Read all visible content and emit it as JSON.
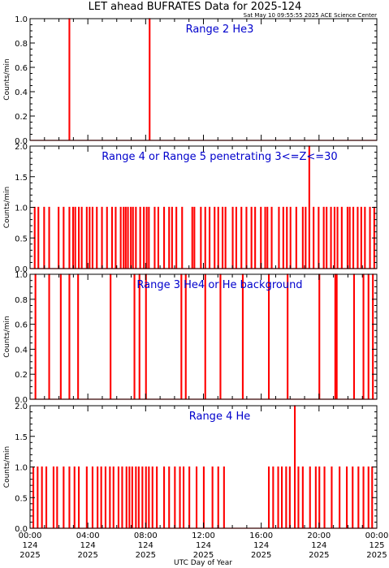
{
  "title": "LET ahead BUFRATES Data for 2025-124",
  "timestamp": "Sat May 10 09:55:55 2025 ACE Science Center",
  "xlabel": "UTC Day of Year",
  "colors": {
    "data": "#ff0000",
    "panel_title": "#0000cc",
    "axes": "#000000"
  },
  "chart_data": [
    {
      "type": "line",
      "title": "Range 2 He3",
      "ylabel": "Counts/min",
      "ylim": [
        0,
        1.0
      ],
      "yticks": [
        "0.0",
        "0.2",
        "0.4",
        "0.6",
        "0.8",
        "1.0"
      ],
      "xlim": [
        0,
        24
      ],
      "series": [
        {
          "x": [
            2.7,
            8.25
          ],
          "y": [
            1.0,
            1.0
          ]
        }
      ]
    },
    {
      "type": "line",
      "title": "Range 4 or Range 5 penetrating 3<=Z<=30",
      "ylabel": "Counts/min",
      "ylim": [
        0,
        2.0
      ],
      "yticks": [
        "0.0",
        "0.5",
        "1.0",
        "1.5",
        "2.0"
      ],
      "xlim": [
        0,
        24
      ],
      "series": [
        {
          "x": [
            0.3,
            0.55,
            0.95,
            1.3,
            1.95,
            2.3,
            2.7,
            2.95,
            3.1,
            3.35,
            3.55,
            3.9,
            4.1,
            4.3,
            4.6,
            4.95,
            5.3,
            5.65,
            5.9,
            6.25,
            6.45,
            6.6,
            6.75,
            6.95,
            7.1,
            7.3,
            7.6,
            7.85,
            8.05,
            8.2,
            8.6,
            8.85,
            9.25,
            9.6,
            9.8,
            10.1,
            10.5,
            11.2,
            11.35,
            11.8,
            12.1,
            12.4,
            12.75,
            13.0,
            13.3,
            13.5,
            14.0,
            14.25,
            14.6,
            14.95,
            15.3,
            15.55,
            15.95,
            16.25,
            16.4,
            16.7,
            17.2,
            17.5,
            17.75,
            18.0,
            18.4,
            18.85,
            19.05,
            19.3,
            19.6,
            19.95,
            20.3,
            20.5,
            20.8,
            21.05,
            21.25,
            21.55,
            21.95,
            22.1,
            22.35,
            22.65,
            22.9,
            23.15,
            23.5,
            23.8
          ],
          "y": [
            1,
            1,
            1,
            1,
            1,
            1,
            1,
            1,
            1,
            1,
            1,
            1,
            1,
            1,
            1,
            1,
            1,
            1,
            1,
            1,
            1,
            1,
            1,
            1,
            1,
            1,
            1,
            1,
            1,
            1,
            1,
            1,
            1,
            1,
            1,
            1,
            1,
            1,
            1,
            1,
            1,
            1,
            1,
            1,
            1,
            1,
            1,
            1,
            1,
            1,
            1,
            1,
            1,
            1,
            1,
            1,
            1,
            1,
            1,
            1,
            1,
            1,
            1,
            2,
            1,
            1,
            1,
            1,
            1,
            1,
            1,
            1,
            1,
            1,
            1,
            1,
            1,
            1,
            1,
            1
          ]
        }
      ]
    },
    {
      "type": "line",
      "title": "Range 3 He4 or He background",
      "ylabel": "Counts/min",
      "ylim": [
        0,
        1.0
      ],
      "yticks": [
        "0.0",
        "0.2",
        "0.4",
        "0.6",
        "0.8",
        "1.0"
      ],
      "xlim": [
        0,
        24
      ],
      "series": [
        {
          "x": [
            0.35,
            1.3,
            2.1,
            2.7,
            3.3,
            5.55,
            7.2,
            7.55,
            8.0,
            10.45,
            10.75,
            12.1,
            13.15,
            14.7,
            16.5,
            17.8,
            20.0,
            21.1,
            21.2,
            22.4,
            23.05,
            23.4,
            23.7
          ],
          "y": [
            1,
            1,
            1,
            1,
            1,
            1,
            1,
            1,
            1,
            1,
            1,
            1,
            1,
            1,
            1,
            1,
            1,
            1,
            1,
            1,
            1,
            1,
            1
          ]
        }
      ]
    },
    {
      "type": "line",
      "title": "Range 4 He",
      "ylabel": "Counts/min",
      "ylim": [
        0,
        2.0
      ],
      "yticks": [
        "0.0",
        "0.5",
        "1.0",
        "1.5",
        "2.0"
      ],
      "xlim": [
        0,
        24
      ],
      "series": [
        {
          "x": [
            0.2,
            0.5,
            0.8,
            1.1,
            1.6,
            1.85,
            2.3,
            2.7,
            3.05,
            3.35,
            3.9,
            4.3,
            4.65,
            4.9,
            5.2,
            5.5,
            5.75,
            6.1,
            6.35,
            6.65,
            6.85,
            7.05,
            7.3,
            7.5,
            7.75,
            8.0,
            8.2,
            8.45,
            8.75,
            9.25,
            9.6,
            10.0,
            10.35,
            10.6,
            11.0,
            11.5,
            12.0,
            12.6,
            13.0,
            13.4,
            16.5,
            16.8,
            17.15,
            17.4,
            17.7,
            17.95,
            18.3,
            18.55,
            18.85,
            19.35,
            19.75,
            20.0,
            20.35,
            20.85,
            21.4,
            21.9,
            22.3,
            22.7,
            23.05,
            23.4,
            23.65
          ],
          "y": [
            1,
            1,
            1,
            1,
            1,
            1,
            1,
            1,
            1,
            1,
            1,
            1,
            1,
            1,
            1,
            1,
            1,
            1,
            1,
            1,
            1,
            1,
            1,
            1,
            1,
            1,
            1,
            1,
            1,
            1,
            1,
            1,
            1,
            1,
            1,
            1,
            1,
            1,
            1,
            1,
            1,
            1,
            1,
            1,
            1,
            1,
            2,
            1,
            1,
            1,
            1,
            1,
            1,
            1,
            1,
            1,
            1,
            1,
            1,
            1,
            1
          ]
        }
      ]
    }
  ],
  "xticks": [
    {
      "value": 0,
      "time": "00:00",
      "doy": "124",
      "year": "2025"
    },
    {
      "value": 4,
      "time": "04:00",
      "doy": "124",
      "year": "2025"
    },
    {
      "value": 8,
      "time": "08:00",
      "doy": "124",
      "year": "2025"
    },
    {
      "value": 12,
      "time": "12:00",
      "doy": "124",
      "year": "2025"
    },
    {
      "value": 16,
      "time": "16:00",
      "doy": "124",
      "year": "2025"
    },
    {
      "value": 20,
      "time": "20:00",
      "doy": "124",
      "year": "2025"
    },
    {
      "value": 24,
      "time": "00:00",
      "doy": "125",
      "year": "2025"
    }
  ]
}
